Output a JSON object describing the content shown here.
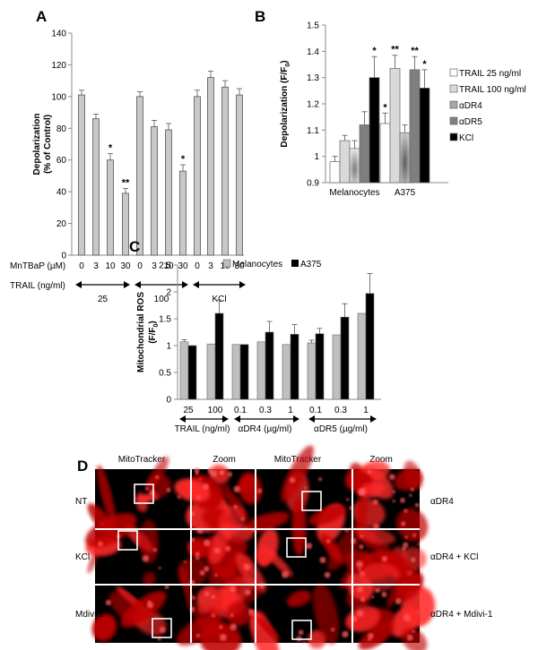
{
  "chart_data": [
    {
      "panel": "A",
      "type": "bar",
      "ylabel": "Depolarization",
      "ylabel_sub": "(% of Control)",
      "ylim": [
        0,
        140
      ],
      "yticks": [
        0,
        20,
        40,
        60,
        80,
        100,
        120,
        140
      ],
      "row_label": "MnTBaP (µM)",
      "row2_label": "TRAIL (ng/ml)",
      "categories": [
        "0",
        "3",
        "10",
        "30",
        "0",
        "3",
        "10",
        "30",
        "0",
        "3",
        "10",
        "30"
      ],
      "values": [
        101,
        86,
        60,
        39,
        100,
        81,
        79,
        53,
        100,
        112,
        106,
        101
      ],
      "errors": [
        3,
        3,
        4,
        3,
        3,
        4,
        4,
        4,
        4,
        4,
        4,
        4
      ],
      "stars": [
        "",
        "",
        "*",
        "**",
        "",
        "",
        "",
        "*",
        "",
        "",
        "",
        ""
      ],
      "groups": [
        "25",
        "100",
        "KCl"
      ],
      "bar_color": "#c8c8c8"
    },
    {
      "panel": "B",
      "type": "bar",
      "ylabel": "Depolarization (F/F",
      "ylabel_sub": "0",
      "ylim": [
        0.9,
        1.5
      ],
      "yticks": [
        "0.9",
        "1",
        "1.1",
        "1.2",
        "1.3",
        "1.4",
        "1.5"
      ],
      "categories": [
        "Melanocytes",
        "A375"
      ],
      "series": [
        {
          "name": "TRAIL 25 ng/ml",
          "values": [
            0.98,
            1.125
          ],
          "errors": [
            0.02,
            0.04
          ],
          "stars": [
            "",
            "*"
          ],
          "color": "#ffffff"
        },
        {
          "name": "TRAIL 100 ng/ml",
          "values": [
            1.06,
            1.335
          ],
          "errors": [
            0.02,
            0.05
          ],
          "stars": [
            "",
            "**"
          ],
          "color": "#d9d9d9"
        },
        {
          "name": "αDR4",
          "values": [
            1.03,
            1.09
          ],
          "errors": [
            0.03,
            0.03
          ],
          "stars": [
            "",
            ""
          ],
          "color": "#a6a6a6"
        },
        {
          "name": "αDR5",
          "values": [
            1.12,
            1.33
          ],
          "errors": [
            0.05,
            0.05
          ],
          "stars": [
            "",
            "**"
          ],
          "color": "#7f7f7f"
        },
        {
          "name": "KCl",
          "values": [
            1.3,
            1.26
          ],
          "errors": [
            0.08,
            0.07
          ],
          "stars": [
            "*",
            "*"
          ],
          "color": "#000000"
        }
      ]
    },
    {
      "panel": "C",
      "type": "bar",
      "ylabel": "Mitochondrial ROS",
      "ylabel_sub": "(F/F",
      "ylabel_sub2": "0",
      "ylim": [
        0,
        2.5
      ],
      "yticks": [
        "0",
        "0.5",
        "1",
        "1.5",
        "2",
        "2.5"
      ],
      "categories": [
        "25",
        "100",
        "0.1",
        "0.3",
        "1",
        "0.1",
        "0.3",
        "1"
      ],
      "groups": [
        "TRAIL (ng/ml)",
        "αDR4 (µg/ml)",
        "αDR5 (µg/ml)"
      ],
      "series": [
        {
          "name": "Melanocytes",
          "values": [
            1.07,
            1.03,
            1.02,
            1.07,
            1.02,
            1.05,
            1.2,
            1.6
          ],
          "errors": [
            0.04,
            0,
            0,
            0,
            0,
            0.05,
            0,
            0
          ],
          "color": "#bfbfbf"
        },
        {
          "name": "A375",
          "values": [
            1.0,
            1.6,
            1.02,
            1.25,
            1.21,
            1.22,
            1.53,
            1.97
          ],
          "errors": [
            0,
            0.25,
            0,
            0.2,
            0.18,
            0.1,
            0.25,
            0.37
          ],
          "color": "#000000"
        }
      ]
    }
  ],
  "panel_d": {
    "panel": "D",
    "col_headers": [
      "MitoTracker",
      "Zoom",
      "MitoTracker",
      "Zoom"
    ],
    "left_rows": [
      "NT",
      "KCl",
      "Mdivi-1"
    ],
    "right_rows": [
      "αDR4",
      "αDR4 + KCl",
      "αDR4 + Mdivi-1"
    ]
  }
}
